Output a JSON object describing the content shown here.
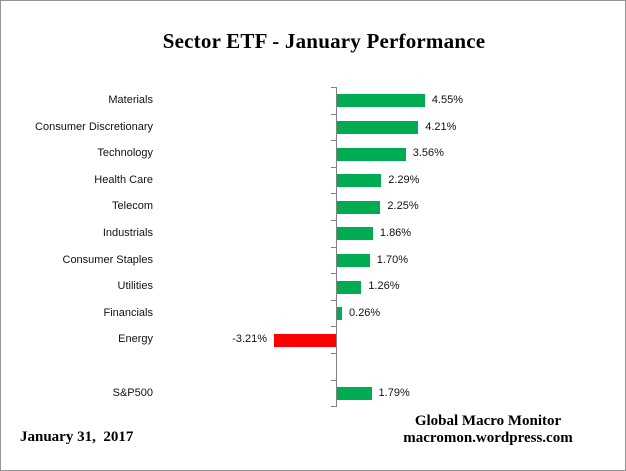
{
  "chart_data": {
    "type": "bar",
    "orientation": "horizontal",
    "title": "Sector ETF - January Performance",
    "categories": [
      "Materials",
      "Consumer Discretionary",
      "Technology",
      "Health Care",
      "Telecom",
      "Industrials",
      "Consumer Staples",
      "Utilities",
      "Financials",
      "Energy",
      "",
      "S&P500"
    ],
    "values": [
      4.55,
      4.21,
      3.56,
      2.29,
      2.25,
      1.86,
      1.7,
      1.26,
      0.26,
      -3.21,
      null,
      1.79
    ],
    "value_labels": [
      "4.55%",
      "4.21%",
      "3.56%",
      "2.29%",
      "2.25%",
      "1.86%",
      "1.70%",
      "1.26%",
      "0.26%",
      "-3.21%",
      "",
      "1.79%"
    ],
    "grid": false,
    "legend": false,
    "x_axis_labels_shown": false,
    "positive_color": "#00AC52",
    "negative_color": "#FF0000",
    "axis_color": "#808080"
  },
  "footer": {
    "date": "January 31,  2017",
    "credit_line1": "Global Macro Monitor",
    "credit_line2": "macromon.wordpress.com"
  }
}
